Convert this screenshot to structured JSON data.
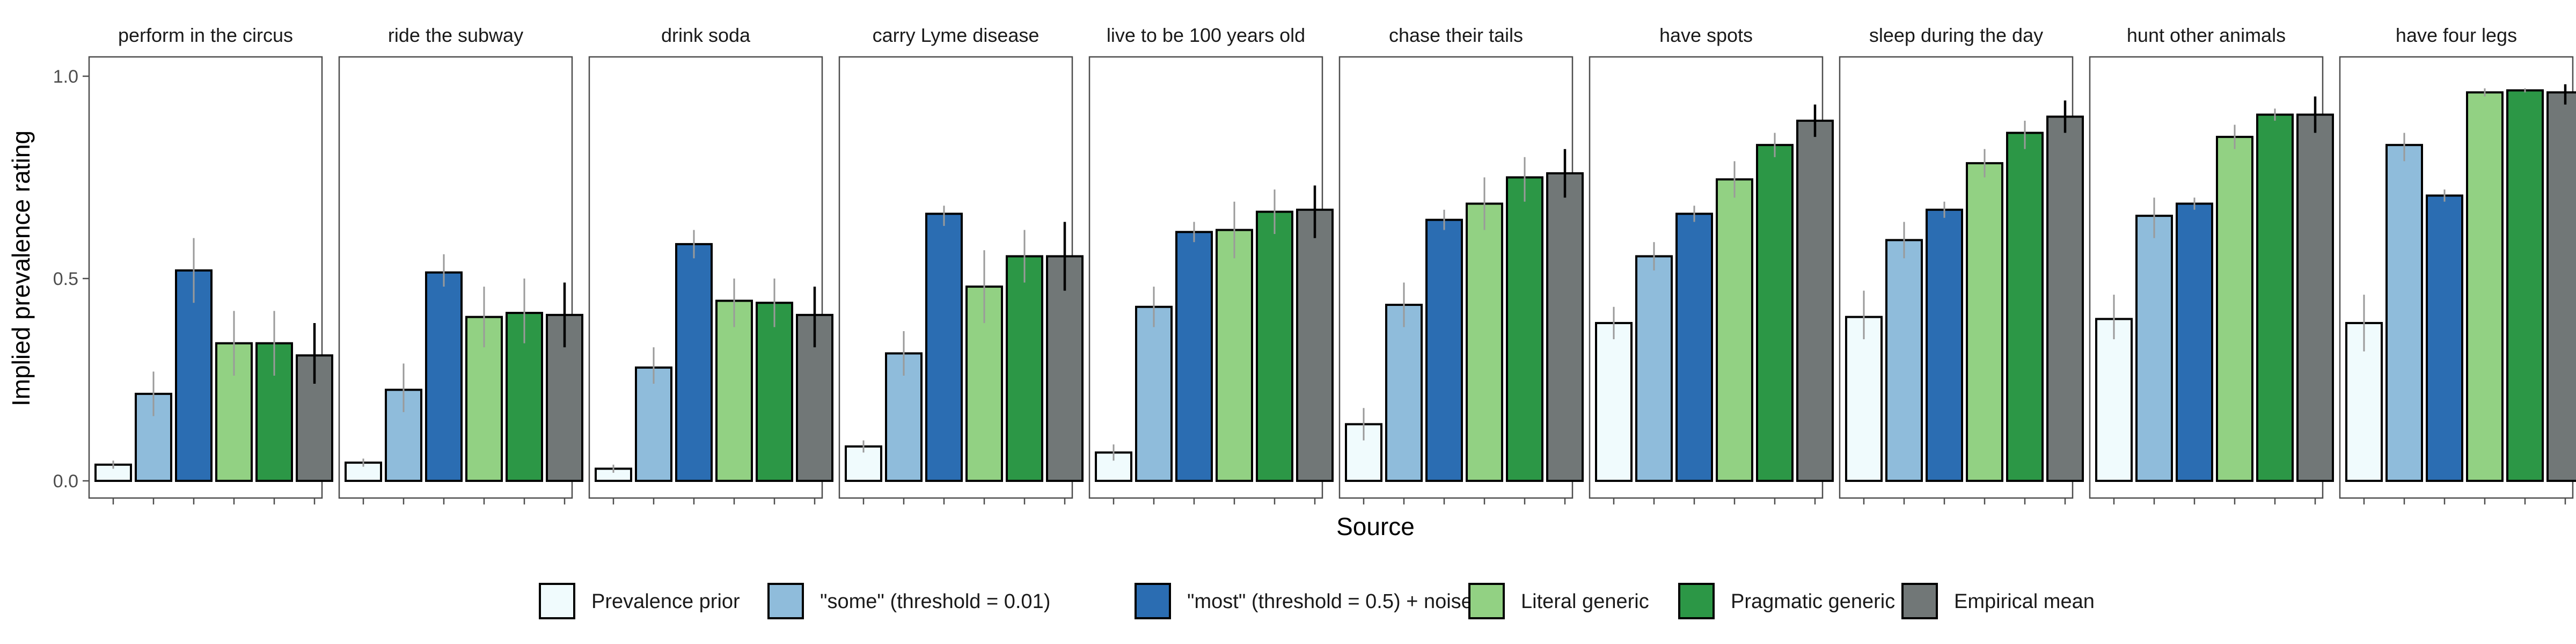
{
  "chart_data": {
    "type": "bar",
    "facet_type": "grouped bar small multiples",
    "ylabel": "Implied prevalence rating",
    "xlabel": "Source",
    "ylim": [
      0,
      1.05
    ],
    "yticks": [
      "0.0",
      "0.5",
      "1.0"
    ],
    "ytick_values": [
      0,
      0.5,
      1.0
    ],
    "legend_position": "bottom",
    "error_bars": true,
    "grid": false,
    "series": [
      {
        "name": "Prevalence prior",
        "color": "#f0fbfd"
      },
      {
        "name": "\"some\" (threshold = 0.01)",
        "color": "#8fbcdb"
      },
      {
        "name": "\"most\" (threshold = 0.5) + noise",
        "color": "#2b6db2"
      },
      {
        "name": "Literal generic",
        "color": "#92d183"
      },
      {
        "name": "Pragmatic generic",
        "color": "#2c9746"
      },
      {
        "name": "Empirical mean",
        "color": "#717777"
      }
    ],
    "facets": [
      {
        "label": "perform in the circus",
        "values": [
          0.04,
          0.215,
          0.52,
          0.34,
          0.34,
          0.31
        ],
        "errors": [
          [
            0.03,
            0.05
          ],
          [
            0.16,
            0.27
          ],
          [
            0.44,
            0.6
          ],
          [
            0.26,
            0.42
          ],
          [
            0.26,
            0.42
          ],
          [
            0.24,
            0.39
          ]
        ]
      },
      {
        "label": "ride the subway",
        "values": [
          0.045,
          0.225,
          0.515,
          0.405,
          0.415,
          0.41
        ],
        "errors": [
          [
            0.035,
            0.055
          ],
          [
            0.17,
            0.29
          ],
          [
            0.48,
            0.56
          ],
          [
            0.33,
            0.48
          ],
          [
            0.34,
            0.5
          ],
          [
            0.33,
            0.49
          ]
        ]
      },
      {
        "label": "drink soda",
        "values": [
          0.03,
          0.28,
          0.585,
          0.445,
          0.44,
          0.41
        ],
        "errors": [
          [
            0.02,
            0.04
          ],
          [
            0.24,
            0.33
          ],
          [
            0.55,
            0.62
          ],
          [
            0.38,
            0.5
          ],
          [
            0.38,
            0.5
          ],
          [
            0.33,
            0.48
          ]
        ]
      },
      {
        "label": "carry Lyme disease",
        "values": [
          0.085,
          0.315,
          0.66,
          0.48,
          0.555,
          0.555
        ],
        "errors": [
          [
            0.07,
            0.1
          ],
          [
            0.26,
            0.37
          ],
          [
            0.63,
            0.68
          ],
          [
            0.39,
            0.57
          ],
          [
            0.49,
            0.62
          ],
          [
            0.47,
            0.64
          ]
        ]
      },
      {
        "label": "live to be 100 years old",
        "values": [
          0.07,
          0.43,
          0.615,
          0.62,
          0.665,
          0.67
        ],
        "errors": [
          [
            0.05,
            0.09
          ],
          [
            0.38,
            0.48
          ],
          [
            0.59,
            0.64
          ],
          [
            0.55,
            0.69
          ],
          [
            0.61,
            0.72
          ],
          [
            0.6,
            0.73
          ]
        ]
      },
      {
        "label": "chase their tails",
        "values": [
          0.14,
          0.435,
          0.645,
          0.685,
          0.75,
          0.76
        ],
        "errors": [
          [
            0.1,
            0.18
          ],
          [
            0.38,
            0.49
          ],
          [
            0.62,
            0.67
          ],
          [
            0.62,
            0.75
          ],
          [
            0.69,
            0.8
          ],
          [
            0.7,
            0.82
          ]
        ]
      },
      {
        "label": "have spots",
        "values": [
          0.39,
          0.555,
          0.66,
          0.745,
          0.83,
          0.89
        ],
        "errors": [
          [
            0.35,
            0.43
          ],
          [
            0.52,
            0.59
          ],
          [
            0.64,
            0.68
          ],
          [
            0.7,
            0.79
          ],
          [
            0.8,
            0.86
          ],
          [
            0.85,
            0.93
          ]
        ]
      },
      {
        "label": "sleep during the day",
        "values": [
          0.405,
          0.595,
          0.67,
          0.785,
          0.86,
          0.9
        ],
        "errors": [
          [
            0.35,
            0.47
          ],
          [
            0.55,
            0.64
          ],
          [
            0.65,
            0.69
          ],
          [
            0.75,
            0.82
          ],
          [
            0.82,
            0.89
          ],
          [
            0.86,
            0.94
          ]
        ]
      },
      {
        "label": "hunt other animals",
        "values": [
          0.4,
          0.655,
          0.685,
          0.85,
          0.905,
          0.905
        ],
        "errors": [
          [
            0.35,
            0.46
          ],
          [
            0.6,
            0.7
          ],
          [
            0.67,
            0.7
          ],
          [
            0.82,
            0.88
          ],
          [
            0.89,
            0.92
          ],
          [
            0.86,
            0.95
          ]
        ]
      },
      {
        "label": "have four legs",
        "values": [
          0.39,
          0.83,
          0.705,
          0.96,
          0.965,
          0.96
        ],
        "errors": [
          [
            0.32,
            0.46
          ],
          [
            0.79,
            0.86
          ],
          [
            0.69,
            0.72
          ],
          [
            0.95,
            0.97
          ],
          [
            0.96,
            0.97
          ],
          [
            0.93,
            0.98
          ]
        ]
      }
    ]
  }
}
